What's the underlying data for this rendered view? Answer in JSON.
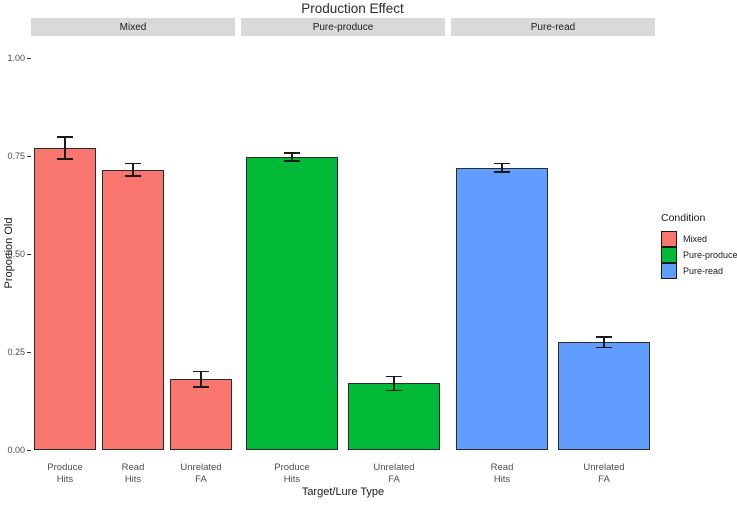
{
  "chart_data": {
    "type": "bar",
    "title": "Production Effect",
    "xlabel": "Target/Lure Type",
    "ylabel": "Proportion Old",
    "ylim": [
      0,
      1.05
    ],
    "yticks": [
      0,
      0.25,
      0.5,
      0.75,
      1.0
    ],
    "grid": false,
    "legend": {
      "title": "Condition",
      "position": "right",
      "entries": [
        {
          "label": "Mixed",
          "color": "#F8766D"
        },
        {
          "label": "Pure-produce",
          "color": "#00BA38"
        },
        {
          "label": "Pure-read",
          "color": "#619CFF"
        }
      ]
    },
    "facets": [
      {
        "label": "Mixed",
        "color": "#F8766D",
        "bars": [
          {
            "category": "Produce Hits",
            "value": 0.77,
            "error": 0.03
          },
          {
            "category": "Read Hits",
            "value": 0.715,
            "error": 0.018
          },
          {
            "category": "Unrelated FA",
            "value": 0.18,
            "error": 0.022
          }
        ]
      },
      {
        "label": "Pure-produce",
        "color": "#00BA38",
        "bars": [
          {
            "category": "Produce Hits",
            "value": 0.748,
            "error": 0.012
          },
          {
            "category": "Unrelated FA",
            "value": 0.17,
            "error": 0.02
          }
        ]
      },
      {
        "label": "Pure-read",
        "color": "#619CFF",
        "bars": [
          {
            "category": "Read Hits",
            "value": 0.72,
            "error": 0.013
          },
          {
            "category": "Unrelated FA",
            "value": 0.275,
            "error": 0.016
          }
        ]
      }
    ]
  }
}
